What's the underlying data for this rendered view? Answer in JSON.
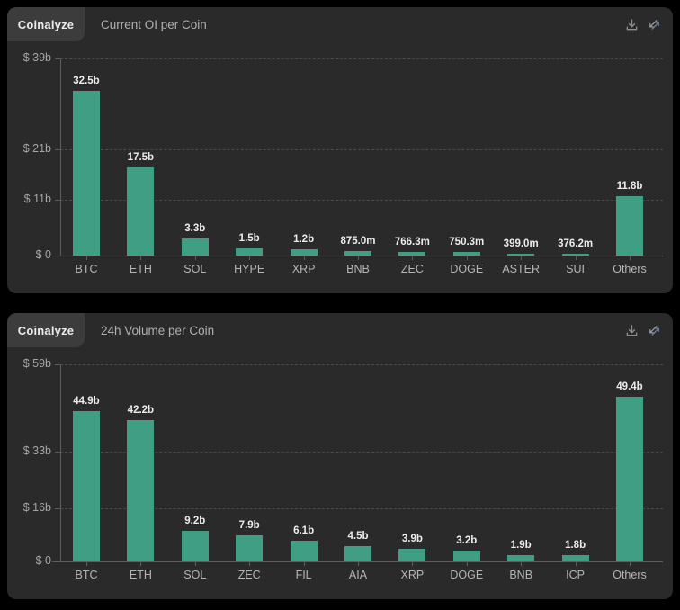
{
  "brand_badge": "Coinalyze",
  "toolbar": {
    "icons": [
      {
        "name": "download-icon"
      },
      {
        "name": "diagonal-arrows-icon"
      }
    ]
  },
  "colors": {
    "page_bg": "#000000",
    "panel_bg": "#2a2a2a",
    "badge_bg": "#3c3c3c",
    "bar": "#3f9e84",
    "grid": "#4a4a4a",
    "axis": "#5e5e5e",
    "title": "#b0b0b0",
    "tick_label": "#a6a6a6",
    "category_label": "#b5b5b5",
    "value_label": "#ececec",
    "icon": "#8f8f8f",
    "icon_accent": "#6d83a3"
  },
  "chart_data": [
    {
      "type": "bar",
      "title": "Current OI per Coin",
      "categories": [
        "BTC",
        "ETH",
        "SOL",
        "HYPE",
        "XRP",
        "BNB",
        "ZEC",
        "DOGE",
        "ASTER",
        "SUI",
        "Others"
      ],
      "values_billions": [
        32.5,
        17.5,
        3.3,
        1.5,
        1.2,
        0.875,
        0.7663,
        0.7503,
        0.399,
        0.3762,
        11.8
      ],
      "value_labels": [
        "32.5b",
        "17.5b",
        "3.3b",
        "1.5b",
        "1.2b",
        "875.0m",
        "766.3m",
        "750.3m",
        "399.0m",
        "376.2m",
        "11.8b"
      ],
      "xlabel": "",
      "ylabel": "",
      "y_ticks": [
        {
          "label": "$ 39b",
          "value": 39
        },
        {
          "label": "$ 21b",
          "value": 21
        },
        {
          "label": "$ 11b",
          "value": 11
        },
        {
          "label": "$ 0",
          "value": 0
        }
      ],
      "ylim": [
        0,
        39
      ],
      "grid": "horizontal-dashed",
      "legend": "none",
      "bar_color": "#3f9e84"
    },
    {
      "type": "bar",
      "title": "24h Volume per Coin",
      "categories": [
        "BTC",
        "ETH",
        "SOL",
        "ZEC",
        "FIL",
        "AIA",
        "XRP",
        "DOGE",
        "BNB",
        "ICP",
        "Others"
      ],
      "values_billions": [
        44.9,
        42.2,
        9.2,
        7.9,
        6.1,
        4.5,
        3.9,
        3.2,
        1.9,
        1.8,
        49.4
      ],
      "value_labels": [
        "44.9b",
        "42.2b",
        "9.2b",
        "7.9b",
        "6.1b",
        "4.5b",
        "3.9b",
        "3.2b",
        "1.9b",
        "1.8b",
        "49.4b"
      ],
      "xlabel": "",
      "ylabel": "",
      "y_ticks": [
        {
          "label": "$ 59b",
          "value": 59
        },
        {
          "label": "$ 33b",
          "value": 33
        },
        {
          "label": "$ 16b",
          "value": 16
        },
        {
          "label": "$ 0",
          "value": 0
        }
      ],
      "ylim": [
        0,
        59
      ],
      "grid": "horizontal-dashed",
      "legend": "none",
      "bar_color": "#3f9e84"
    }
  ]
}
